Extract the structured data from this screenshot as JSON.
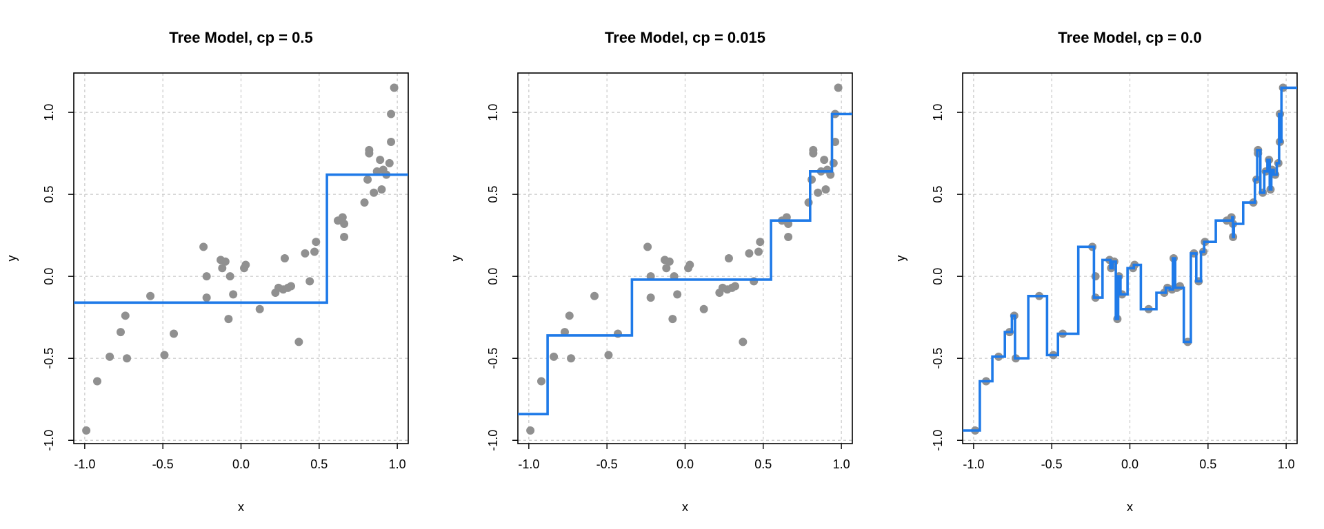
{
  "chart_data": [
    {
      "type": "scatter",
      "title": "Tree Model, cp = 0.5",
      "xlabel": "x",
      "ylabel": "y",
      "xlim": [
        -1.07,
        1.07
      ],
      "ylim": [
        -1.02,
        1.24
      ],
      "xticks": [
        "-1.0",
        "-0.5",
        "0.0",
        "0.5",
        "1.0"
      ],
      "yticks": [
        "-1.0",
        "-0.5",
        "0.0",
        "0.5",
        "1.0"
      ],
      "grid": true,
      "series": [
        {
          "points": [
            [
              -0.99,
              -0.94
            ],
            [
              -0.92,
              -0.64
            ],
            [
              -0.84,
              -0.49
            ],
            [
              -0.77,
              -0.34
            ],
            [
              -0.74,
              -0.24
            ],
            [
              -0.73,
              -0.5
            ],
            [
              -0.58,
              -0.12
            ],
            [
              -0.49,
              -0.48
            ],
            [
              -0.43,
              -0.35
            ],
            [
              -0.24,
              0.18
            ],
            [
              -0.22,
              -0.13
            ],
            [
              -0.22,
              0.0
            ],
            [
              -0.13,
              0.1
            ],
            [
              -0.12,
              0.05
            ],
            [
              -0.1,
              0.09
            ],
            [
              -0.08,
              -0.26
            ],
            [
              -0.07,
              0.0
            ],
            [
              -0.05,
              -0.11
            ],
            [
              0.02,
              0.05
            ],
            [
              0.03,
              0.07
            ],
            [
              0.12,
              -0.2
            ],
            [
              0.22,
              -0.1
            ],
            [
              0.24,
              -0.07
            ],
            [
              0.27,
              -0.08
            ],
            [
              0.28,
              0.11
            ],
            [
              0.3,
              -0.07
            ],
            [
              0.32,
              -0.06
            ],
            [
              0.37,
              -0.4
            ],
            [
              0.41,
              0.14
            ],
            [
              0.44,
              -0.03
            ],
            [
              0.47,
              0.15
            ],
            [
              0.48,
              0.21
            ],
            [
              0.62,
              0.34
            ],
            [
              0.65,
              0.36
            ],
            [
              0.66,
              0.32
            ],
            [
              0.66,
              0.24
            ],
            [
              0.79,
              0.45
            ],
            [
              0.81,
              0.59
            ],
            [
              0.82,
              0.77
            ],
            [
              0.82,
              0.75
            ],
            [
              0.85,
              0.51
            ],
            [
              0.87,
              0.64
            ],
            [
              0.89,
              0.71
            ],
            [
              0.9,
              0.53
            ],
            [
              0.91,
              0.65
            ],
            [
              0.93,
              0.62
            ],
            [
              0.95,
              0.69
            ],
            [
              0.96,
              0.82
            ],
            [
              0.96,
              0.99
            ],
            [
              0.98,
              1.15
            ]
          ],
          "fit_steps": [
            [
              -1.07,
              -0.16
            ],
            [
              0.55,
              -0.16
            ],
            [
              0.55,
              0.62
            ],
            [
              1.07,
              0.62
            ]
          ]
        }
      ]
    },
    {
      "type": "scatter",
      "title": "Tree Model, cp = 0.015",
      "xlabel": "x",
      "ylabel": "y",
      "xlim": [
        -1.07,
        1.07
      ],
      "ylim": [
        -1.02,
        1.24
      ],
      "xticks": [
        "-1.0",
        "-0.5",
        "0.0",
        "0.5",
        "1.0"
      ],
      "yticks": [
        "-1.0",
        "-0.5",
        "0.0",
        "0.5",
        "1.0"
      ],
      "grid": true,
      "series": [
        {
          "points": [
            [
              -0.99,
              -0.94
            ],
            [
              -0.92,
              -0.64
            ],
            [
              -0.84,
              -0.49
            ],
            [
              -0.77,
              -0.34
            ],
            [
              -0.74,
              -0.24
            ],
            [
              -0.73,
              -0.5
            ],
            [
              -0.58,
              -0.12
            ],
            [
              -0.49,
              -0.48
            ],
            [
              -0.43,
              -0.35
            ],
            [
              -0.24,
              0.18
            ],
            [
              -0.22,
              -0.13
            ],
            [
              -0.22,
              0.0
            ],
            [
              -0.13,
              0.1
            ],
            [
              -0.12,
              0.05
            ],
            [
              -0.1,
              0.09
            ],
            [
              -0.08,
              -0.26
            ],
            [
              -0.07,
              0.0
            ],
            [
              -0.05,
              -0.11
            ],
            [
              0.02,
              0.05
            ],
            [
              0.03,
              0.07
            ],
            [
              0.12,
              -0.2
            ],
            [
              0.22,
              -0.1
            ],
            [
              0.24,
              -0.07
            ],
            [
              0.27,
              -0.08
            ],
            [
              0.28,
              0.11
            ],
            [
              0.3,
              -0.07
            ],
            [
              0.32,
              -0.06
            ],
            [
              0.37,
              -0.4
            ],
            [
              0.41,
              0.14
            ],
            [
              0.44,
              -0.03
            ],
            [
              0.47,
              0.15
            ],
            [
              0.48,
              0.21
            ],
            [
              0.62,
              0.34
            ],
            [
              0.65,
              0.36
            ],
            [
              0.66,
              0.32
            ],
            [
              0.66,
              0.24
            ],
            [
              0.79,
              0.45
            ],
            [
              0.81,
              0.59
            ],
            [
              0.82,
              0.77
            ],
            [
              0.82,
              0.75
            ],
            [
              0.85,
              0.51
            ],
            [
              0.87,
              0.64
            ],
            [
              0.89,
              0.71
            ],
            [
              0.9,
              0.53
            ],
            [
              0.91,
              0.65
            ],
            [
              0.93,
              0.62
            ],
            [
              0.95,
              0.69
            ],
            [
              0.96,
              0.82
            ],
            [
              0.96,
              0.99
            ],
            [
              0.98,
              1.15
            ]
          ],
          "fit_steps": [
            [
              -1.07,
              -0.84
            ],
            [
              -0.88,
              -0.84
            ],
            [
              -0.88,
              -0.36
            ],
            [
              -0.34,
              -0.36
            ],
            [
              -0.34,
              -0.02
            ],
            [
              0.55,
              -0.02
            ],
            [
              0.55,
              0.34
            ],
            [
              0.8,
              0.34
            ],
            [
              0.8,
              0.64
            ],
            [
              0.94,
              0.64
            ],
            [
              0.94,
              0.99
            ],
            [
              1.07,
              0.99
            ]
          ]
        }
      ]
    },
    {
      "type": "scatter",
      "title": "Tree Model, cp = 0.0",
      "xlabel": "x",
      "ylabel": "y",
      "xlim": [
        -1.07,
        1.07
      ],
      "ylim": [
        -1.02,
        1.24
      ],
      "xticks": [
        "-1.0",
        "-0.5",
        "0.0",
        "0.5",
        "1.0"
      ],
      "yticks": [
        "-1.0",
        "-0.5",
        "0.0",
        "0.5",
        "1.0"
      ],
      "grid": true,
      "series": [
        {
          "points": [
            [
              -0.99,
              -0.94
            ],
            [
              -0.92,
              -0.64
            ],
            [
              -0.84,
              -0.49
            ],
            [
              -0.77,
              -0.34
            ],
            [
              -0.74,
              -0.24
            ],
            [
              -0.73,
              -0.5
            ],
            [
              -0.58,
              -0.12
            ],
            [
              -0.49,
              -0.48
            ],
            [
              -0.43,
              -0.35
            ],
            [
              -0.24,
              0.18
            ],
            [
              -0.22,
              -0.13
            ],
            [
              -0.22,
              0.0
            ],
            [
              -0.13,
              0.1
            ],
            [
              -0.12,
              0.05
            ],
            [
              -0.1,
              0.09
            ],
            [
              -0.08,
              -0.26
            ],
            [
              -0.07,
              0.0
            ],
            [
              -0.05,
              -0.11
            ],
            [
              0.02,
              0.05
            ],
            [
              0.03,
              0.07
            ],
            [
              0.12,
              -0.2
            ],
            [
              0.22,
              -0.1
            ],
            [
              0.24,
              -0.07
            ],
            [
              0.27,
              -0.08
            ],
            [
              0.28,
              0.11
            ],
            [
              0.3,
              -0.07
            ],
            [
              0.32,
              -0.06
            ],
            [
              0.37,
              -0.4
            ],
            [
              0.41,
              0.14
            ],
            [
              0.44,
              -0.03
            ],
            [
              0.47,
              0.15
            ],
            [
              0.48,
              0.21
            ],
            [
              0.62,
              0.34
            ],
            [
              0.65,
              0.36
            ],
            [
              0.66,
              0.32
            ],
            [
              0.66,
              0.24
            ],
            [
              0.79,
              0.45
            ],
            [
              0.81,
              0.59
            ],
            [
              0.82,
              0.77
            ],
            [
              0.82,
              0.75
            ],
            [
              0.85,
              0.51
            ],
            [
              0.87,
              0.64
            ],
            [
              0.89,
              0.71
            ],
            [
              0.9,
              0.53
            ],
            [
              0.91,
              0.65
            ],
            [
              0.93,
              0.62
            ],
            [
              0.95,
              0.69
            ],
            [
              0.96,
              0.82
            ],
            [
              0.96,
              0.99
            ],
            [
              0.98,
              1.15
            ]
          ],
          "fit_steps": [
            [
              -1.07,
              -0.94
            ],
            [
              -0.96,
              -0.94
            ],
            [
              -0.96,
              -0.64
            ],
            [
              -0.88,
              -0.64
            ],
            [
              -0.88,
              -0.49
            ],
            [
              -0.8,
              -0.49
            ],
            [
              -0.8,
              -0.34
            ],
            [
              -0.755,
              -0.34
            ],
            [
              -0.755,
              -0.24
            ],
            [
              -0.735,
              -0.24
            ],
            [
              -0.735,
              -0.5
            ],
            [
              -0.65,
              -0.5
            ],
            [
              -0.65,
              -0.12
            ],
            [
              -0.53,
              -0.12
            ],
            [
              -0.53,
              -0.48
            ],
            [
              -0.46,
              -0.48
            ],
            [
              -0.46,
              -0.35
            ],
            [
              -0.33,
              -0.35
            ],
            [
              -0.33,
              0.18
            ],
            [
              -0.23,
              0.18
            ],
            [
              -0.23,
              -0.13
            ],
            [
              -0.175,
              -0.13
            ],
            [
              -0.175,
              0.1
            ],
            [
              -0.125,
              0.1
            ],
            [
              -0.125,
              0.05
            ],
            [
              -0.11,
              0.05
            ],
            [
              -0.11,
              0.09
            ],
            [
              -0.09,
              0.09
            ],
            [
              -0.09,
              -0.26
            ],
            [
              -0.075,
              -0.26
            ],
            [
              -0.075,
              0.0
            ],
            [
              -0.06,
              0.0
            ],
            [
              -0.06,
              -0.11
            ],
            [
              -0.015,
              -0.11
            ],
            [
              -0.015,
              0.05
            ],
            [
              0.025,
              0.05
            ],
            [
              0.025,
              0.07
            ],
            [
              0.07,
              0.07
            ],
            [
              0.07,
              -0.2
            ],
            [
              0.17,
              -0.2
            ],
            [
              0.17,
              -0.1
            ],
            [
              0.23,
              -0.1
            ],
            [
              0.23,
              -0.07
            ],
            [
              0.255,
              -0.07
            ],
            [
              0.255,
              -0.08
            ],
            [
              0.275,
              -0.08
            ],
            [
              0.275,
              0.11
            ],
            [
              0.29,
              0.11
            ],
            [
              0.29,
              -0.07
            ],
            [
              0.345,
              -0.07
            ],
            [
              0.345,
              -0.4
            ],
            [
              0.39,
              -0.4
            ],
            [
              0.39,
              0.14
            ],
            [
              0.425,
              0.14
            ],
            [
              0.425,
              -0.03
            ],
            [
              0.455,
              -0.03
            ],
            [
              0.455,
              0.15
            ],
            [
              0.475,
              0.15
            ],
            [
              0.475,
              0.21
            ],
            [
              0.55,
              0.21
            ],
            [
              0.55,
              0.34
            ],
            [
              0.655,
              0.34
            ],
            [
              0.655,
              0.36
            ],
            [
              0.66,
              0.36
            ],
            [
              0.66,
              0.24
            ],
            [
              0.665,
              0.24
            ],
            [
              0.665,
              0.32
            ],
            [
              0.725,
              0.32
            ],
            [
              0.725,
              0.45
            ],
            [
              0.8,
              0.45
            ],
            [
              0.8,
              0.59
            ],
            [
              0.815,
              0.59
            ],
            [
              0.815,
              0.77
            ],
            [
              0.835,
              0.77
            ],
            [
              0.835,
              0.51
            ],
            [
              0.86,
              0.51
            ],
            [
              0.86,
              0.64
            ],
            [
              0.88,
              0.64
            ],
            [
              0.88,
              0.71
            ],
            [
              0.895,
              0.71
            ],
            [
              0.895,
              0.53
            ],
            [
              0.905,
              0.53
            ],
            [
              0.905,
              0.65
            ],
            [
              0.92,
              0.65
            ],
            [
              0.92,
              0.62
            ],
            [
              0.94,
              0.62
            ],
            [
              0.94,
              0.69
            ],
            [
              0.955,
              0.69
            ],
            [
              0.955,
              0.99
            ],
            [
              0.958,
              0.99
            ],
            [
              0.958,
              0.82
            ],
            [
              0.97,
              0.82
            ],
            [
              0.97,
              1.15
            ],
            [
              1.07,
              1.15
            ]
          ]
        }
      ]
    }
  ]
}
